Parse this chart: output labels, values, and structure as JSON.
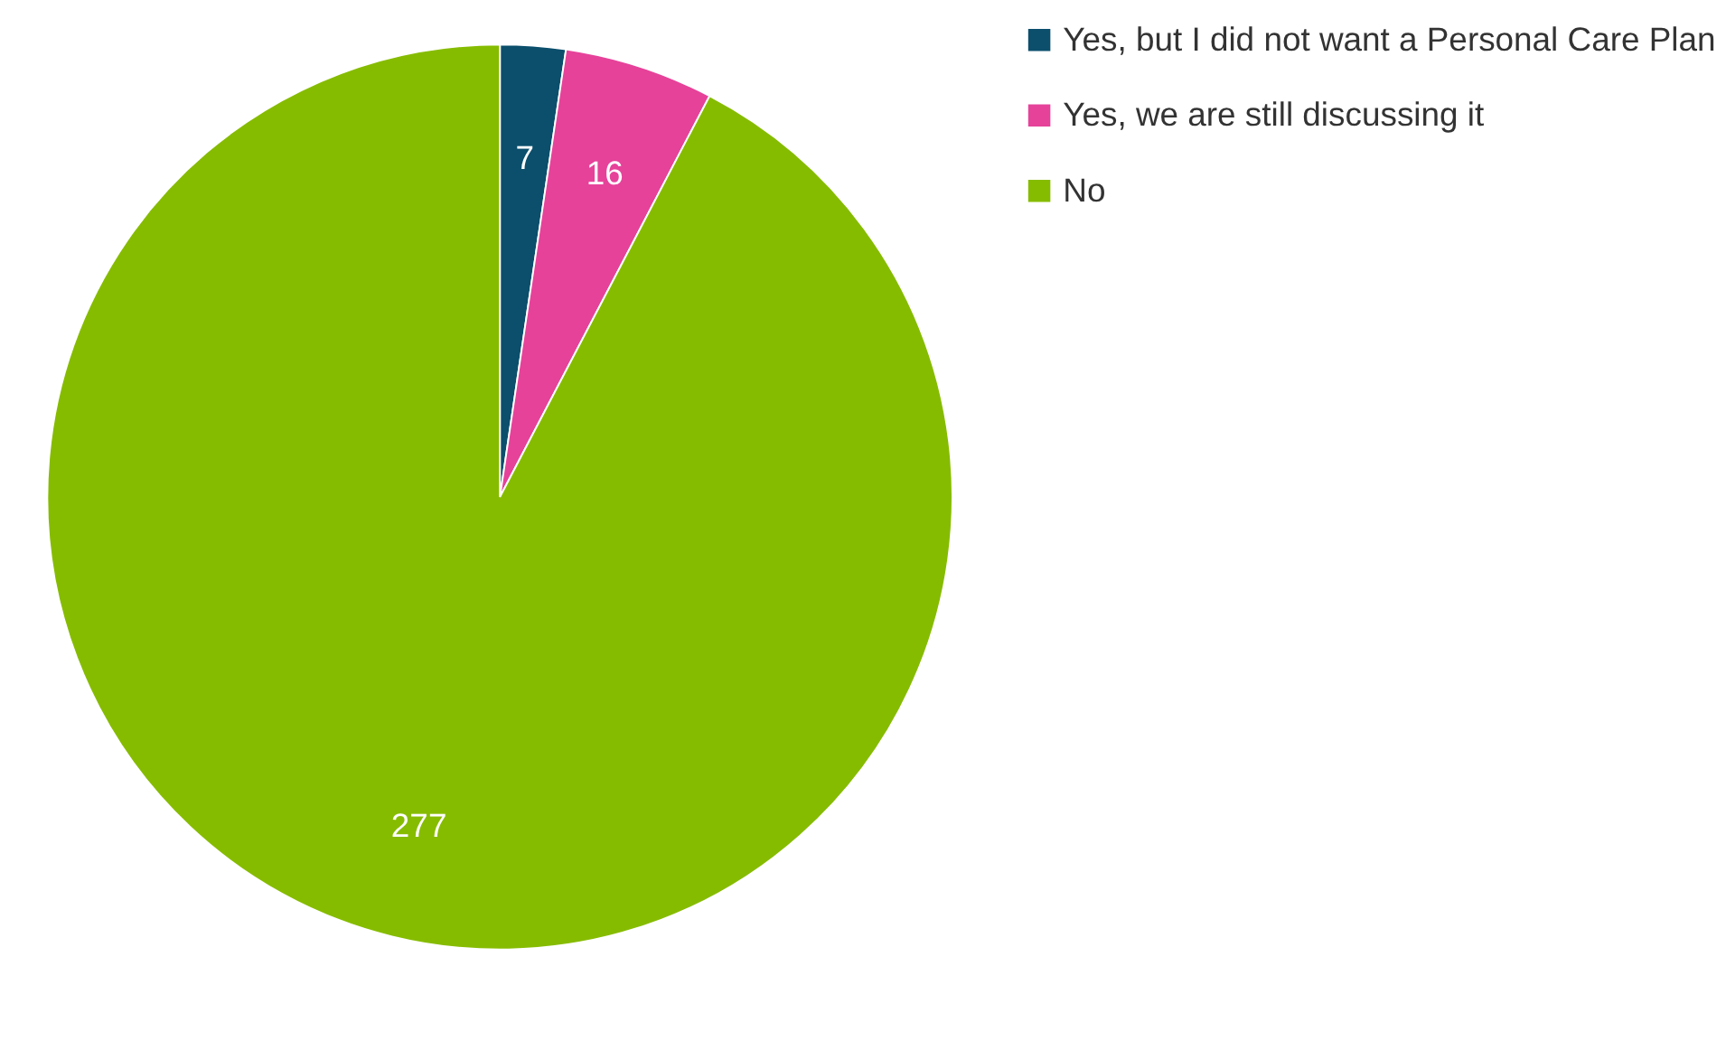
{
  "chart_data": {
    "type": "pie",
    "categories": [
      "Yes, but I did not want a Personal Care Plan",
      "Yes, we are still discussing it",
      "No"
    ],
    "values": [
      7,
      16,
      277
    ],
    "colors": [
      "#0b4f6c",
      "#e6429a",
      "#86bc00"
    ],
    "data_labels": true,
    "legend": "right"
  }
}
